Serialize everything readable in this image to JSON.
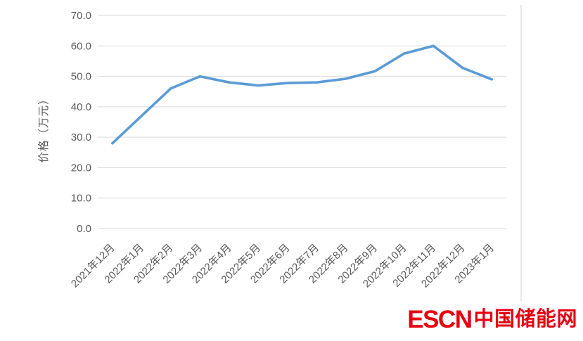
{
  "branding": {
    "logo_en": "ESCN",
    "logo_cn": "中国储能网",
    "logo_color": "#e60012"
  },
  "chart_data": {
    "type": "line",
    "title": "",
    "xlabel": "",
    "ylabel": "价格（万元）",
    "categories": [
      "2021年12月",
      "2022年1月",
      "2022年2月",
      "2022年3月",
      "2022年4月",
      "2022年5月",
      "2022年6月",
      "2022年7月",
      "2022年8月",
      "2022年9月",
      "2022年10月",
      "2022年11月",
      "2022年12月",
      "2023年1月"
    ],
    "series": [
      {
        "name": "价格",
        "values": [
          28,
          37,
          46,
          50,
          48,
          47,
          47.8,
          48,
          49.2,
          51.7,
          57.5,
          60,
          52.8,
          49
        ]
      }
    ],
    "ylim": [
      0,
      70
    ],
    "ytick_step": 10,
    "yticks": [
      "0.0",
      "10.0",
      "20.0",
      "30.0",
      "40.0",
      "50.0",
      "60.0",
      "70.0"
    ],
    "grid": true,
    "legend_position": "none",
    "line_color": "#5b9bd5",
    "grid_color": "#d9d9d9",
    "tick_text_color": "#595959"
  }
}
